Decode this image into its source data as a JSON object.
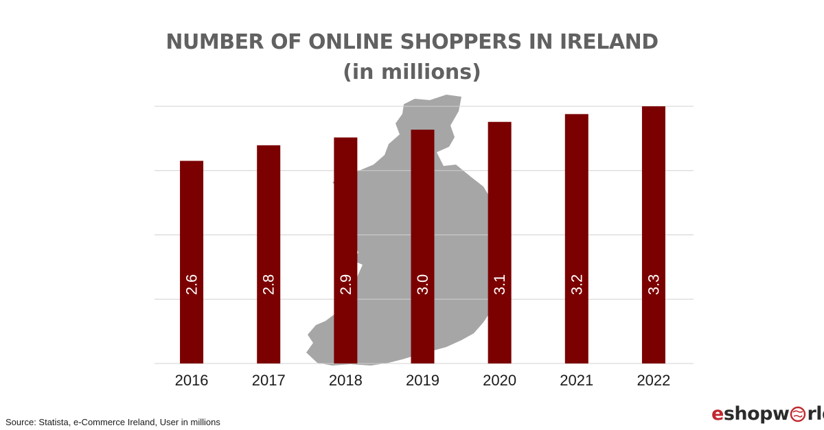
{
  "chart_data": {
    "type": "bar",
    "title": "NUMBER OF ONLINE SHOPPERS IN IRELAND",
    "subtitle": "(in millions)",
    "categories": [
      "2016",
      "2017",
      "2018",
      "2019",
      "2020",
      "2021",
      "2022"
    ],
    "values": [
      2.6,
      2.8,
      2.9,
      3.0,
      3.1,
      3.2,
      3.3
    ],
    "data_labels": [
      "2.6",
      "2.8",
      "2.9",
      "3.0",
      "3.1",
      "3.2",
      "3.3"
    ],
    "ylim": [
      0,
      3.3
    ],
    "grid": true,
    "bar_color": "#7b0000",
    "grid_color": "#d0d0d0",
    "background_image": "ireland-map",
    "map_color": "#a6a6a6"
  },
  "footer": {
    "source": "Source: Statista, e-Commerce Ireland, User in millions"
  },
  "logo": {
    "prefix": "e",
    "middle": "shopw",
    "suffix": "rld",
    "icon": "globe-icon",
    "accent_color": "#c0282e"
  }
}
